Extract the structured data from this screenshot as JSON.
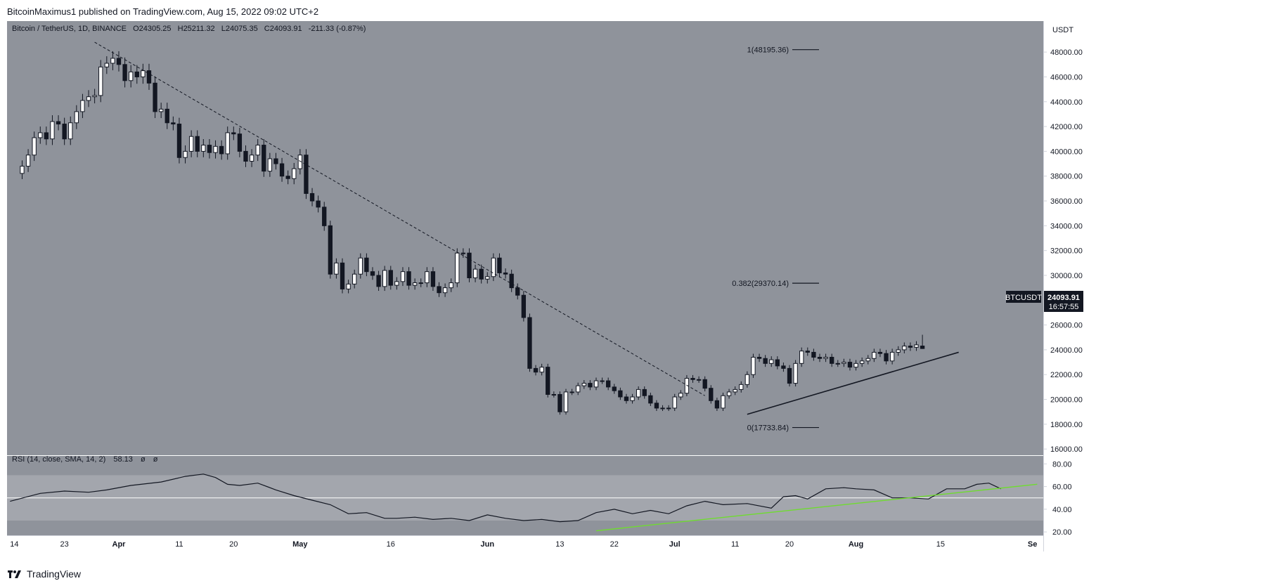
{
  "header": {
    "attribution": "BitcoinMaximus1 published on TradingView.com, Aug 15, 2022 09:02 UTC+2"
  },
  "legend": {
    "symbol": "Bitcoin / TetherUS, 1D, BINANCE",
    "o_label": "O",
    "o_value": "24305.25",
    "h_label": "H",
    "h_value": "25211.32",
    "l_label": "L",
    "l_value": "24075.35",
    "c_label": "C",
    "c_value": "24093.91",
    "change": "-211.33 (-0.87%)"
  },
  "rsi_legend": {
    "label": "RSI (14, close, SMA, 14, 2)",
    "value": "58.13",
    "extra1": "ø",
    "extra2": "ø"
  },
  "price_axis": {
    "currency": "USDT",
    "current_symbol": "BTCUSDT",
    "current_price": "24093.91",
    "countdown": "16:57:55"
  },
  "footer": {
    "brand": "TradingView"
  },
  "colors": {
    "pane_bg": "#8f939b",
    "rsi_band": "#a3a6ad",
    "axis_bg": "#ffffff",
    "up_candle": "#ffffff",
    "down_candle": "#131722",
    "rsi_trend": "#6fdc2f",
    "text": "#131722"
  },
  "chart_data": [
    {
      "type": "candlestick",
      "title": "Bitcoin / TetherUS, 1D, BINANCE",
      "ylabel": "USDT",
      "ylim": [
        15500,
        50500
      ],
      "y_ticks": [
        "16000.00",
        "18000.00",
        "20000.00",
        "22000.00",
        "24000.00",
        "26000.00",
        "28000.00",
        "30000.00",
        "32000.00",
        "34000.00",
        "36000.00",
        "38000.00",
        "40000.00",
        "42000.00",
        "44000.00",
        "46000.00",
        "48000.00"
      ],
      "x_tick_labels": [
        "14",
        "23",
        "Apr",
        "11",
        "20",
        "May",
        "16",
        "Jun",
        "13",
        "22",
        "Jul",
        "11",
        "20",
        "Aug",
        "15",
        "Se"
      ],
      "x_tick_days": [
        -2,
        7,
        16,
        26,
        35,
        46,
        61,
        77,
        89,
        98,
        108,
        118,
        127,
        138,
        152,
        168
      ],
      "x_day_range": [
        -2.5,
        169
      ],
      "x_day_origin": "2022-03-16",
      "close_path": [
        [
          0,
          38800
        ],
        [
          1,
          39700
        ],
        [
          2,
          41100
        ],
        [
          3,
          41500
        ],
        [
          4,
          41000
        ],
        [
          5,
          42400
        ],
        [
          6,
          42200
        ],
        [
          7,
          41000
        ],
        [
          8,
          42300
        ],
        [
          9,
          43200
        ],
        [
          10,
          44100
        ],
        [
          11,
          44400
        ],
        [
          12,
          44500
        ],
        [
          13,
          46800
        ],
        [
          14,
          47100
        ],
        [
          15,
          47500
        ],
        [
          16,
          47000
        ],
        [
          17,
          45700
        ],
        [
          18,
          46400
        ],
        [
          19,
          46000
        ],
        [
          20,
          46500
        ],
        [
          21,
          45500
        ],
        [
          22,
          43200
        ],
        [
          23,
          43400
        ],
        [
          24,
          42300
        ],
        [
          25,
          42200
        ],
        [
          26,
          39500
        ],
        [
          27,
          40000
        ],
        [
          28,
          41200
        ],
        [
          29,
          40000
        ],
        [
          30,
          40500
        ],
        [
          31,
          39900
        ],
        [
          32,
          40400
        ],
        [
          33,
          39800
        ],
        [
          34,
          41500
        ],
        [
          35,
          41400
        ],
        [
          36,
          40000
        ],
        [
          37,
          39200
        ],
        [
          38,
          39700
        ],
        [
          39,
          40500
        ],
        [
          40,
          38400
        ],
        [
          41,
          39400
        ],
        [
          42,
          39000
        ],
        [
          43,
          38000
        ],
        [
          44,
          37800
        ],
        [
          45,
          38600
        ],
        [
          46,
          39700
        ],
        [
          47,
          36600
        ],
        [
          48,
          36000
        ],
        [
          49,
          35500
        ],
        [
          50,
          34000
        ],
        [
          51,
          30100
        ],
        [
          52,
          31000
        ],
        [
          53,
          28900
        ],
        [
          54,
          29300
        ],
        [
          55,
          30100
        ],
        [
          56,
          31400
        ],
        [
          57,
          30300
        ],
        [
          58,
          30000
        ],
        [
          59,
          29100
        ],
        [
          60,
          30400
        ],
        [
          61,
          29200
        ],
        [
          62,
          29500
        ],
        [
          63,
          30300
        ],
        [
          64,
          29200
        ],
        [
          65,
          29400
        ],
        [
          66,
          29400
        ],
        [
          67,
          30300
        ],
        [
          68,
          29100
        ],
        [
          69,
          28600
        ],
        [
          70,
          29000
        ],
        [
          71,
          29400
        ],
        [
          72,
          31800
        ],
        [
          73,
          31800
        ],
        [
          74,
          29800
        ],
        [
          75,
          30500
        ],
        [
          76,
          29700
        ],
        [
          77,
          29900
        ],
        [
          78,
          31400
        ],
        [
          79,
          30200
        ],
        [
          80,
          30100
        ],
        [
          81,
          29000
        ],
        [
          82,
          28400
        ],
        [
          83,
          26600
        ],
        [
          84,
          22500
        ],
        [
          85,
          22200
        ],
        [
          86,
          22600
        ],
        [
          87,
          20400
        ],
        [
          88,
          20400
        ],
        [
          89,
          19000
        ],
        [
          90,
          20600
        ],
        [
          91,
          20600
        ],
        [
          92,
          21100
        ],
        [
          93,
          21300
        ],
        [
          94,
          21000
        ],
        [
          95,
          21500
        ],
        [
          96,
          21500
        ],
        [
          97,
          21000
        ],
        [
          98,
          20700
        ],
        [
          99,
          20200
        ],
        [
          100,
          19900
        ],
        [
          101,
          20200
        ],
        [
          102,
          20800
        ],
        [
          103,
          20300
        ],
        [
          104,
          19700
        ],
        [
          105,
          19300
        ],
        [
          106,
          19300
        ],
        [
          107,
          19300
        ],
        [
          108,
          20200
        ],
        [
          109,
          20500
        ],
        [
          110,
          21700
        ],
        [
          111,
          21600
        ],
        [
          112,
          21600
        ],
        [
          113,
          20900
        ],
        [
          114,
          19900
        ],
        [
          115,
          19300
        ],
        [
          116,
          20300
        ],
        [
          117,
          20600
        ],
        [
          118,
          20800
        ],
        [
          119,
          21200
        ],
        [
          120,
          22000
        ],
        [
          121,
          23400
        ],
        [
          122,
          23300
        ],
        [
          123,
          22900
        ],
        [
          124,
          23200
        ],
        [
          125,
          22700
        ],
        [
          126,
          22500
        ],
        [
          127,
          21300
        ],
        [
          128,
          22900
        ],
        [
          129,
          23900
        ],
        [
          130,
          23800
        ],
        [
          131,
          23400
        ],
        [
          132,
          23300
        ],
        [
          133,
          23400
        ],
        [
          134,
          22900
        ],
        [
          135,
          22900
        ],
        [
          136,
          23000
        ],
        [
          137,
          22600
        ],
        [
          138,
          22900
        ],
        [
          139,
          23100
        ],
        [
          140,
          23300
        ],
        [
          141,
          23800
        ],
        [
          142,
          23700
        ],
        [
          143,
          23100
        ],
        [
          144,
          23800
        ],
        [
          145,
          24000
        ],
        [
          146,
          24300
        ],
        [
          147,
          24200
        ],
        [
          148,
          24400
        ],
        [
          149,
          24100
        ]
      ],
      "last_candle": {
        "date": "Aug 15",
        "open": 24305.25,
        "high": 25211.32,
        "low": 24075.35,
        "close": 24093.91
      },
      "fib_levels": [
        {
          "label": "1(48195.36)",
          "value": 48195.36
        },
        {
          "label": "0.382(29370.14)",
          "value": 29370.14
        },
        {
          "label": "0(17733.84)",
          "value": 17733.84
        }
      ],
      "descending_trendline": {
        "style": "dashed",
        "points": [
          [
            12,
            48800
          ],
          [
            113,
            20300
          ]
        ]
      },
      "ascending_support_line": {
        "style": "solid",
        "points": [
          [
            120,
            18800
          ],
          [
            155,
            23800
          ]
        ]
      }
    },
    {
      "type": "line",
      "title": "RSI (14, close, SMA, 14, 2)",
      "ylim": [
        17,
        87
      ],
      "y_ticks": [
        "20.00",
        "40.00",
        "60.00",
        "80.00"
      ],
      "band": [
        30,
        70
      ],
      "midline": 50,
      "current_value": 58.13,
      "series": [
        {
          "values": [
            [
              -2,
              47
            ],
            [
              3,
              54
            ],
            [
              7,
              56
            ],
            [
              11,
              55
            ],
            [
              14,
              57
            ],
            [
              18,
              61
            ],
            [
              23,
              64
            ],
            [
              27,
              69
            ],
            [
              30,
              71
            ],
            [
              32,
              68
            ],
            [
              34,
              62
            ],
            [
              36,
              61
            ],
            [
              39,
              63
            ],
            [
              42,
              57
            ],
            [
              45,
              52
            ],
            [
              48,
              48
            ],
            [
              51,
              44
            ],
            [
              54,
              36
            ],
            [
              57,
              37
            ],
            [
              60,
              32
            ],
            [
              62,
              32
            ],
            [
              65,
              33
            ],
            [
              68,
              31
            ],
            [
              71,
              32
            ],
            [
              74,
              30
            ],
            [
              77,
              35
            ],
            [
              80,
              32
            ],
            [
              83,
              30
            ],
            [
              86,
              31
            ],
            [
              89,
              29
            ],
            [
              92,
              30
            ],
            [
              95,
              37
            ],
            [
              98,
              40
            ],
            [
              101,
              36
            ],
            [
              104,
              39
            ],
            [
              107,
              36
            ],
            [
              110,
              43
            ],
            [
              113,
              47
            ],
            [
              116,
              44
            ],
            [
              120,
              45
            ],
            [
              124,
              41
            ],
            [
              126,
              51
            ],
            [
              128,
              52
            ],
            [
              130,
              49
            ],
            [
              133,
              58
            ],
            [
              136,
              59
            ],
            [
              138,
              58
            ],
            [
              141,
              57
            ],
            [
              144,
              50
            ],
            [
              147,
              50
            ],
            [
              150,
              49
            ],
            [
              153,
              58
            ],
            [
              156,
              58
            ],
            [
              158,
              62
            ],
            [
              160,
              63
            ],
            [
              162,
              58
            ]
          ]
        }
      ],
      "trendline": {
        "points": [
          [
            95,
            21
          ],
          [
            168,
            62
          ]
        ]
      }
    }
  ]
}
